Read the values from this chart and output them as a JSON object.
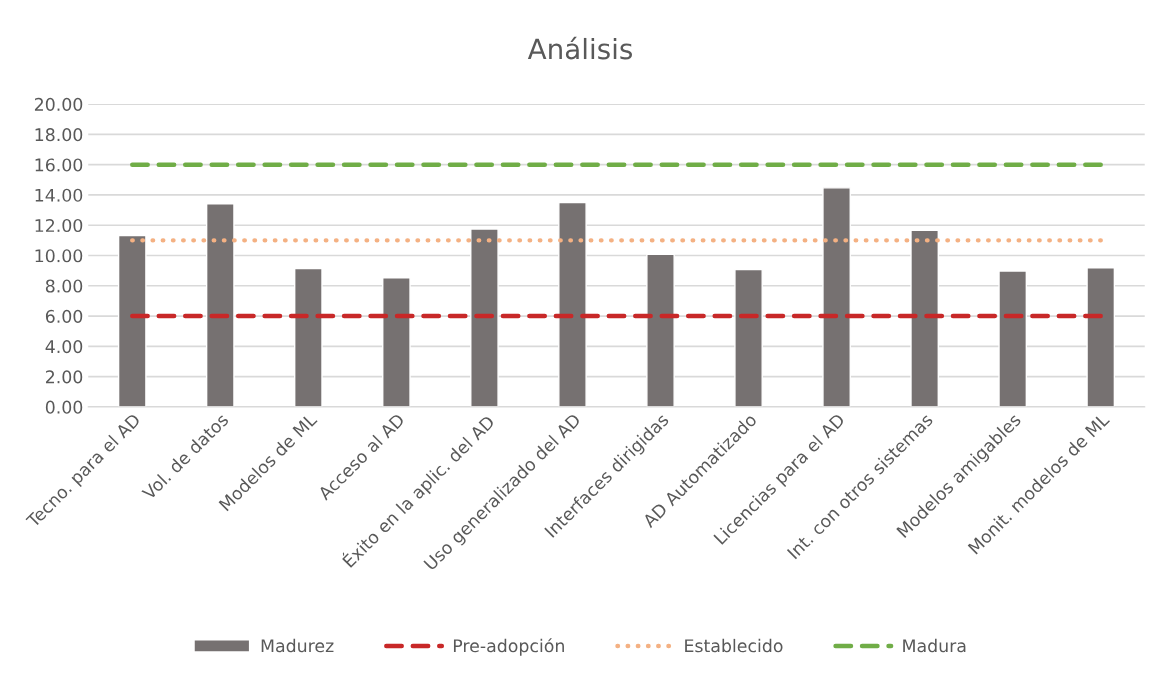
{
  "chart_data": {
    "type": "bar",
    "title": "Análisis",
    "categories": [
      "Tecno. para el AD",
      "Vol. de datos",
      "Modelos de ML",
      "Acceso al AD",
      "Éxito en la aplic. del AD",
      "Uso generalizado del AD",
      "Interfaces dirigidas",
      "AD Automatizado",
      "Licencias para el AD",
      "Int. con otros sistemas",
      "Modelos amigables",
      "Monit. modelos de ML"
    ],
    "series": [
      {
        "name": "Madurez",
        "color": "#767171",
        "values": [
          11.31,
          13.42,
          9.14,
          8.53,
          11.75,
          13.49,
          10.08,
          9.07,
          14.47,
          11.66,
          8.98,
          9.19
        ]
      },
      {
        "name": "Pre-adopción",
        "type": "line",
        "line_style": "dashed",
        "color": "#c82828",
        "values": [
          6,
          6,
          6,
          6,
          6,
          6,
          6,
          6,
          6,
          6,
          6,
          6
        ]
      },
      {
        "name": "Establecido",
        "type": "line",
        "line_style": "dotted",
        "color": "#f4b183",
        "values": [
          11,
          11,
          11,
          11,
          11,
          11,
          11,
          11,
          11,
          11,
          11,
          11
        ]
      },
      {
        "name": "Madura",
        "type": "line",
        "line_style": "dashed",
        "color": "#70ad47",
        "values": [
          16,
          16,
          16,
          16,
          16,
          16,
          16,
          16,
          16,
          16,
          16,
          16
        ]
      }
    ],
    "ylim": [
      0,
      20
    ],
    "yticks": [
      {
        "value": 0,
        "label": "0.00"
      },
      {
        "value": 2,
        "label": "2.00"
      },
      {
        "value": 4,
        "label": "4.00"
      },
      {
        "value": 6,
        "label": "6.00"
      },
      {
        "value": 8,
        "label": "8.00"
      },
      {
        "value": 10,
        "label": "10.00"
      },
      {
        "value": 12,
        "label": "12.00"
      },
      {
        "value": 14,
        "label": "14.00"
      },
      {
        "value": 16,
        "label": "16.00"
      },
      {
        "value": 18,
        "label": "18.00"
      },
      {
        "value": 20,
        "label": "20.00"
      }
    ],
    "grid": "y",
    "legend": "bottom"
  }
}
